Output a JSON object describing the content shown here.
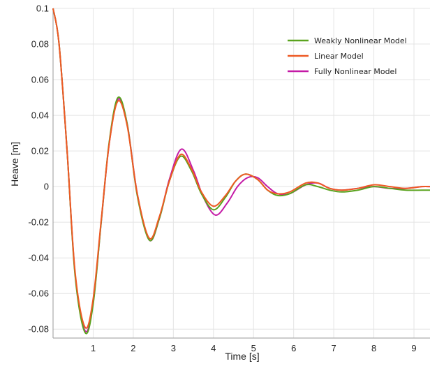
{
  "chart_data": {
    "type": "line",
    "title": "",
    "xlabel": "Time [s]",
    "ylabel": "Heave [m]",
    "xlim": [
      0,
      9.4
    ],
    "ylim": [
      -0.085,
      0.1
    ],
    "x_ticks": [
      1,
      2,
      3,
      4,
      5,
      6,
      7,
      8,
      9
    ],
    "y_ticks": [
      -0.08,
      -0.06,
      -0.04,
      -0.02,
      0,
      0.02,
      0.04,
      0.06,
      0.08,
      0.1
    ],
    "y_tick_labels": [
      "-0.08",
      "-0.06",
      "-0.04",
      "-0.02",
      "0",
      "0.02",
      "0.04",
      "0.06",
      "0.08",
      "0.1"
    ],
    "grid": true,
    "legend_position": "top-right",
    "series": [
      {
        "name": "Weakly Nonlinear Model",
        "color": "#5aa31e",
        "x": [
          0,
          0.15,
          0.35,
          0.55,
          0.8,
          1.0,
          1.2,
          1.4,
          1.62,
          1.85,
          2.1,
          2.4,
          2.65,
          2.9,
          3.18,
          3.45,
          3.7,
          4.0,
          4.3,
          4.55,
          4.8,
          5.1,
          5.35,
          5.6,
          5.9,
          6.3,
          6.6,
          6.9,
          7.2,
          7.6,
          8.0,
          8.4,
          8.8,
          9.2,
          9.4
        ],
        "y": [
          0.1,
          0.08,
          0.02,
          -0.05,
          -0.082,
          -0.066,
          -0.02,
          0.025,
          0.05,
          0.035,
          -0.005,
          -0.03,
          -0.018,
          0.003,
          0.017,
          0.009,
          -0.004,
          -0.013,
          -0.006,
          0.003,
          0.007,
          0.004,
          -0.002,
          -0.005,
          -0.004,
          0.001,
          0.0,
          -0.002,
          -0.003,
          -0.002,
          0.0,
          -0.001,
          -0.002,
          -0.002,
          -0.002
        ]
      },
      {
        "name": "Linear Model",
        "color": "#ee5a24",
        "x": [
          0,
          0.15,
          0.35,
          0.55,
          0.8,
          1.0,
          1.2,
          1.4,
          1.62,
          1.85,
          2.1,
          2.4,
          2.65,
          2.9,
          3.18,
          3.45,
          3.7,
          4.0,
          4.3,
          4.55,
          4.8,
          5.1,
          5.35,
          5.6,
          5.9,
          6.3,
          6.6,
          6.9,
          7.2,
          7.6,
          8.0,
          8.4,
          8.8,
          9.2,
          9.4
        ],
        "y": [
          0.1,
          0.08,
          0.02,
          -0.048,
          -0.079,
          -0.063,
          -0.019,
          0.024,
          0.048,
          0.034,
          -0.004,
          -0.029,
          -0.017,
          0.003,
          0.018,
          0.01,
          -0.003,
          -0.011,
          -0.005,
          0.003,
          0.007,
          0.004,
          -0.002,
          -0.004,
          -0.003,
          0.002,
          0.002,
          -0.001,
          -0.002,
          -0.001,
          0.001,
          0.0,
          -0.001,
          0.0,
          0.0
        ]
      },
      {
        "name": "Fully Nonlinear Model",
        "color": "#c41aa6",
        "x": [
          0,
          0.15,
          0.35,
          0.55,
          0.8,
          1.0,
          1.2,
          1.4,
          1.62,
          1.85,
          2.1,
          2.4,
          2.65,
          2.9,
          3.2,
          3.5,
          3.75,
          4.05,
          4.35,
          4.6,
          4.85,
          5.1,
          5.35,
          5.6,
          5.9,
          6.3,
          6.6,
          6.9,
          7.2,
          7.6,
          8.0,
          8.4,
          8.8,
          9.2,
          9.4
        ],
        "y": [
          0.1,
          0.08,
          0.02,
          -0.049,
          -0.081,
          -0.065,
          -0.02,
          0.024,
          0.049,
          0.035,
          -0.004,
          -0.03,
          -0.018,
          0.004,
          0.021,
          0.009,
          -0.006,
          -0.016,
          -0.009,
          0.0,
          0.005,
          0.005,
          0.0,
          -0.004,
          -0.004,
          0.001,
          0.002,
          -0.001,
          -0.002,
          -0.001,
          0.0,
          -0.001,
          -0.001,
          0.0,
          0.0
        ]
      }
    ]
  }
}
